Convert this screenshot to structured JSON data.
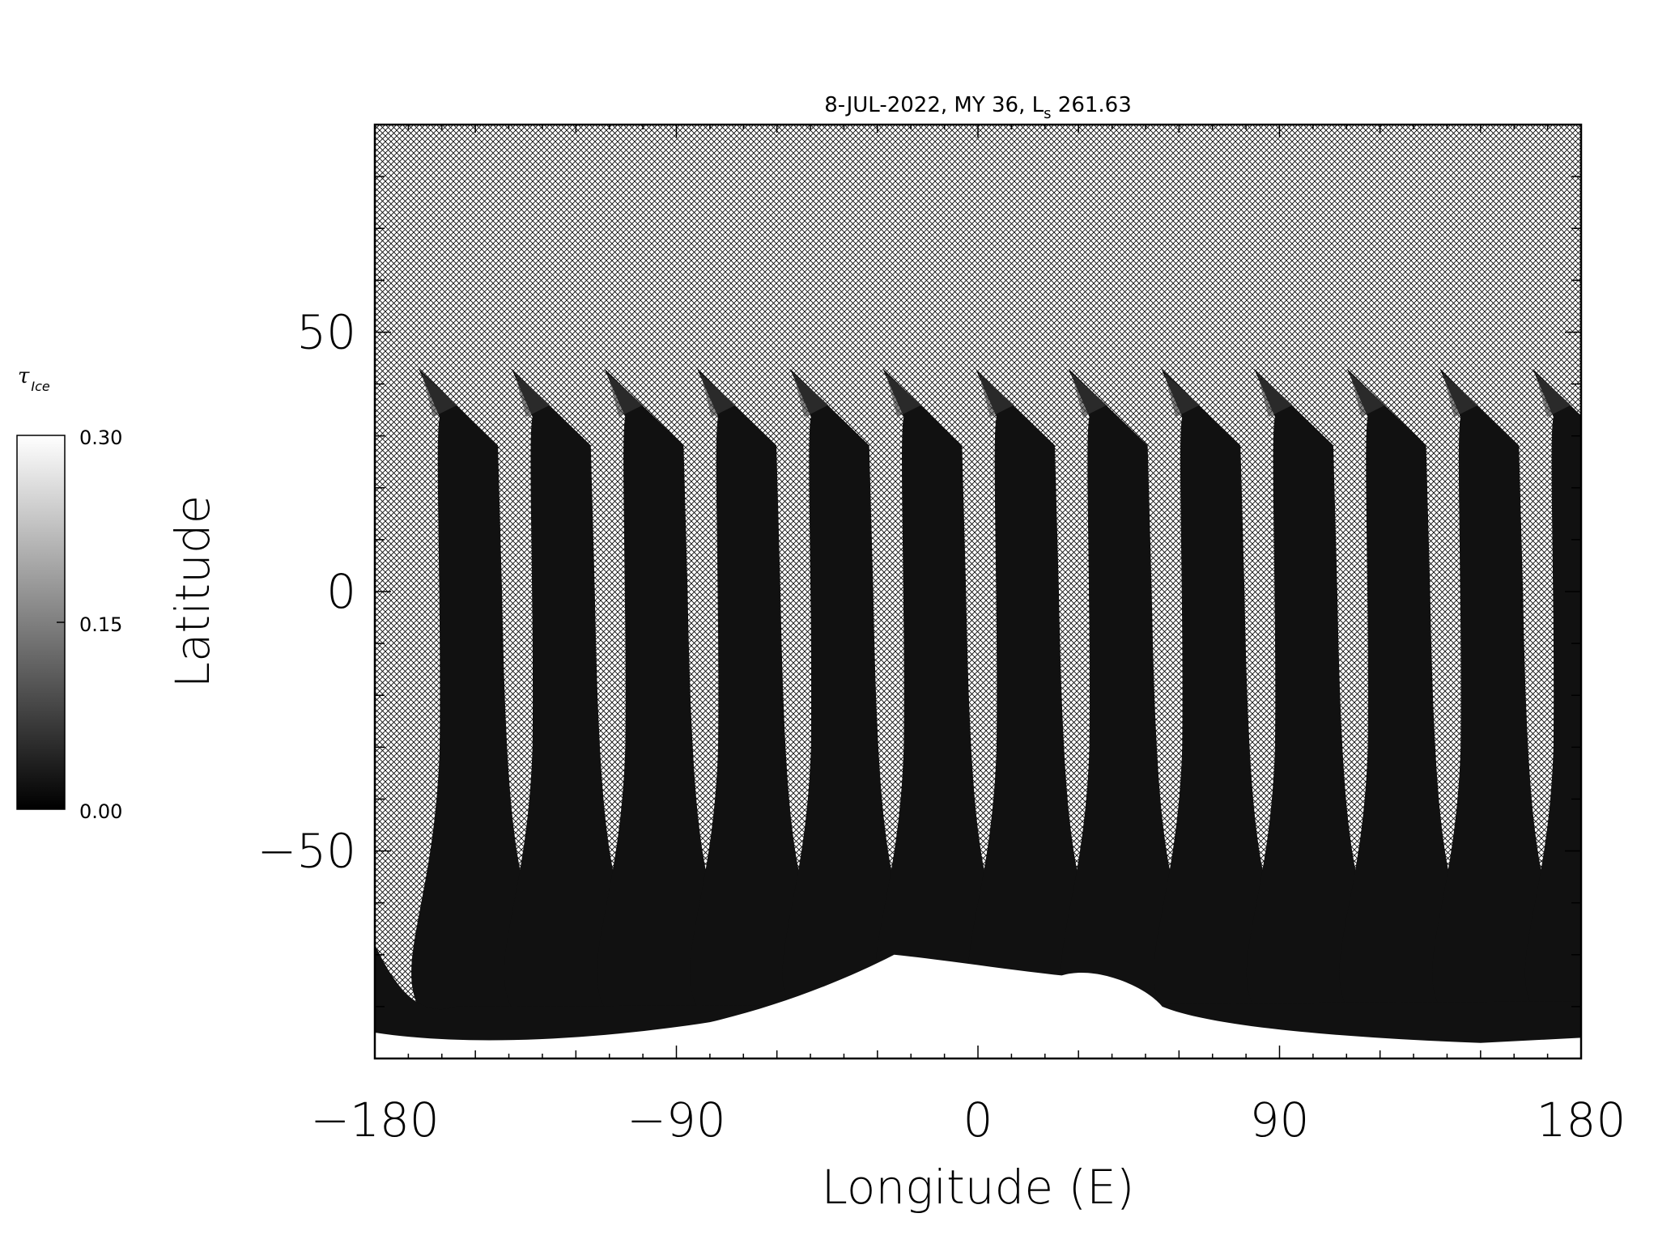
{
  "chart_data": {
    "type": "heatmap",
    "title": {
      "date": "8-JUL-2022",
      "martian_year": "MY 36",
      "ls_symbol": "L",
      "ls_subscript": "s",
      "ls_value": "261.63"
    },
    "xlabel": "Longitude (E)",
    "ylabel": "Latitude",
    "xlim": [
      -180,
      180
    ],
    "ylim": [
      -90,
      90
    ],
    "x_ticks": [
      "-180",
      "-90",
      "0",
      "90",
      "180"
    ],
    "y_ticks": [
      "-50",
      "0",
      "50"
    ],
    "colorbar": {
      "label": "τ",
      "label_sub": "Ice",
      "range": [
        0.0,
        0.3
      ],
      "ticks": [
        "0.30",
        "0.15",
        "0.00"
      ],
      "colormap": "grayscale"
    },
    "missing_data": "cross-hatched",
    "swaths": {
      "count": 13,
      "north_edge_lat": 43,
      "south_edge_lat": -80,
      "longitude_start": -165,
      "longitude_spacing": 27.7,
      "typical_value": 0.02
    },
    "polar_cap": {
      "description": "bright south polar region",
      "value": 0.3,
      "max_extent_lat": -70
    },
    "colors": {
      "hatch": "#000000",
      "background": "#ffffff",
      "low": "#000000",
      "high": "#ffffff"
    }
  }
}
